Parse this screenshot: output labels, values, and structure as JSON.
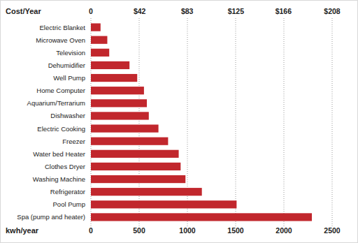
{
  "chart_data": {
    "type": "bar",
    "orientation": "horizontal",
    "categories": [
      "Electric Blanket",
      "Microwave Oven",
      "Television",
      "Dehumidifier",
      "Well Pump",
      "Home Computer",
      "Aquarium/Terrarium",
      "Dishwasher",
      "Electric Cooking",
      "Freezer",
      "Water bed Heater",
      "Clothes Dryer",
      "Washing Machine",
      "Refrigerator",
      "Pool Pump",
      "Spa (pump and heater)"
    ],
    "values": [
      100,
      170,
      190,
      400,
      480,
      550,
      580,
      600,
      700,
      800,
      910,
      930,
      980,
      1150,
      1510,
      2290
    ],
    "color": "#c1272d",
    "xlabel": "kwh/year",
    "xlim": [
      0,
      2500
    ],
    "xticks": [
      0,
      500,
      1000,
      1500,
      2000,
      2500
    ],
    "x2label": "Cost/Year",
    "x2lim": [
      0,
      208
    ],
    "x2ticks": [
      0,
      {
        "value": 42,
        "label": "$42"
      },
      {
        "value": 83,
        "label": "$83"
      },
      {
        "value": 125,
        "label": "$125"
      },
      {
        "value": 166,
        "label": "$166"
      },
      {
        "value": 208,
        "label": "$208"
      }
    ],
    "grid": true
  }
}
